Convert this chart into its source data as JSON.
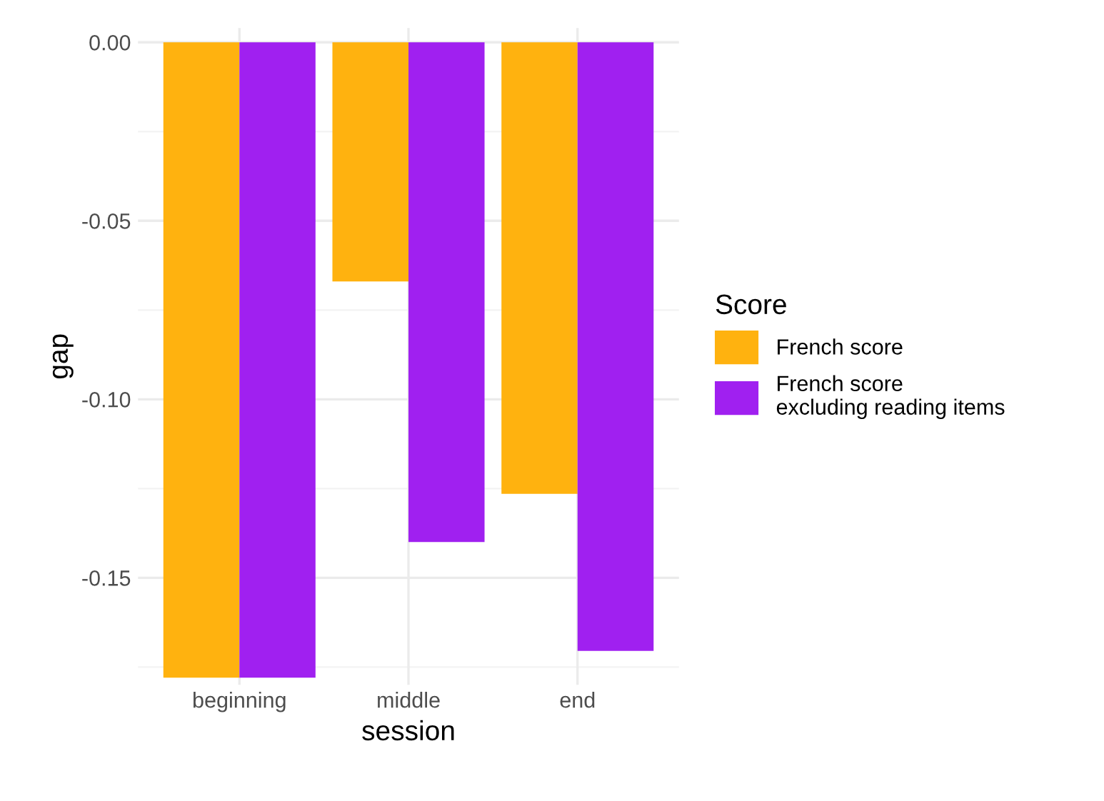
{
  "chart_data": {
    "type": "bar",
    "xlabel": "session",
    "ylabel": "gap",
    "legend_title": "Score",
    "categories": [
      "beginning",
      "middle",
      "end"
    ],
    "series": [
      {
        "name": "French score",
        "color": "#ffb20f",
        "values": [
          -0.178,
          -0.067,
          -0.1265
        ]
      },
      {
        "name": "French score\nexcluding reading items",
        "color": "#a020f0",
        "values": [
          -0.178,
          -0.14,
          -0.1705
        ]
      }
    ],
    "ylim": [
      -0.18,
      0.004
    ],
    "yticks": [
      {
        "value": -0.15,
        "label": "-0.15"
      },
      {
        "value": -0.1,
        "label": "-0.10"
      },
      {
        "value": -0.05,
        "label": "-0.05"
      },
      {
        "value": 0,
        "label": "0.00"
      }
    ],
    "grid": true,
    "legend": "right"
  }
}
